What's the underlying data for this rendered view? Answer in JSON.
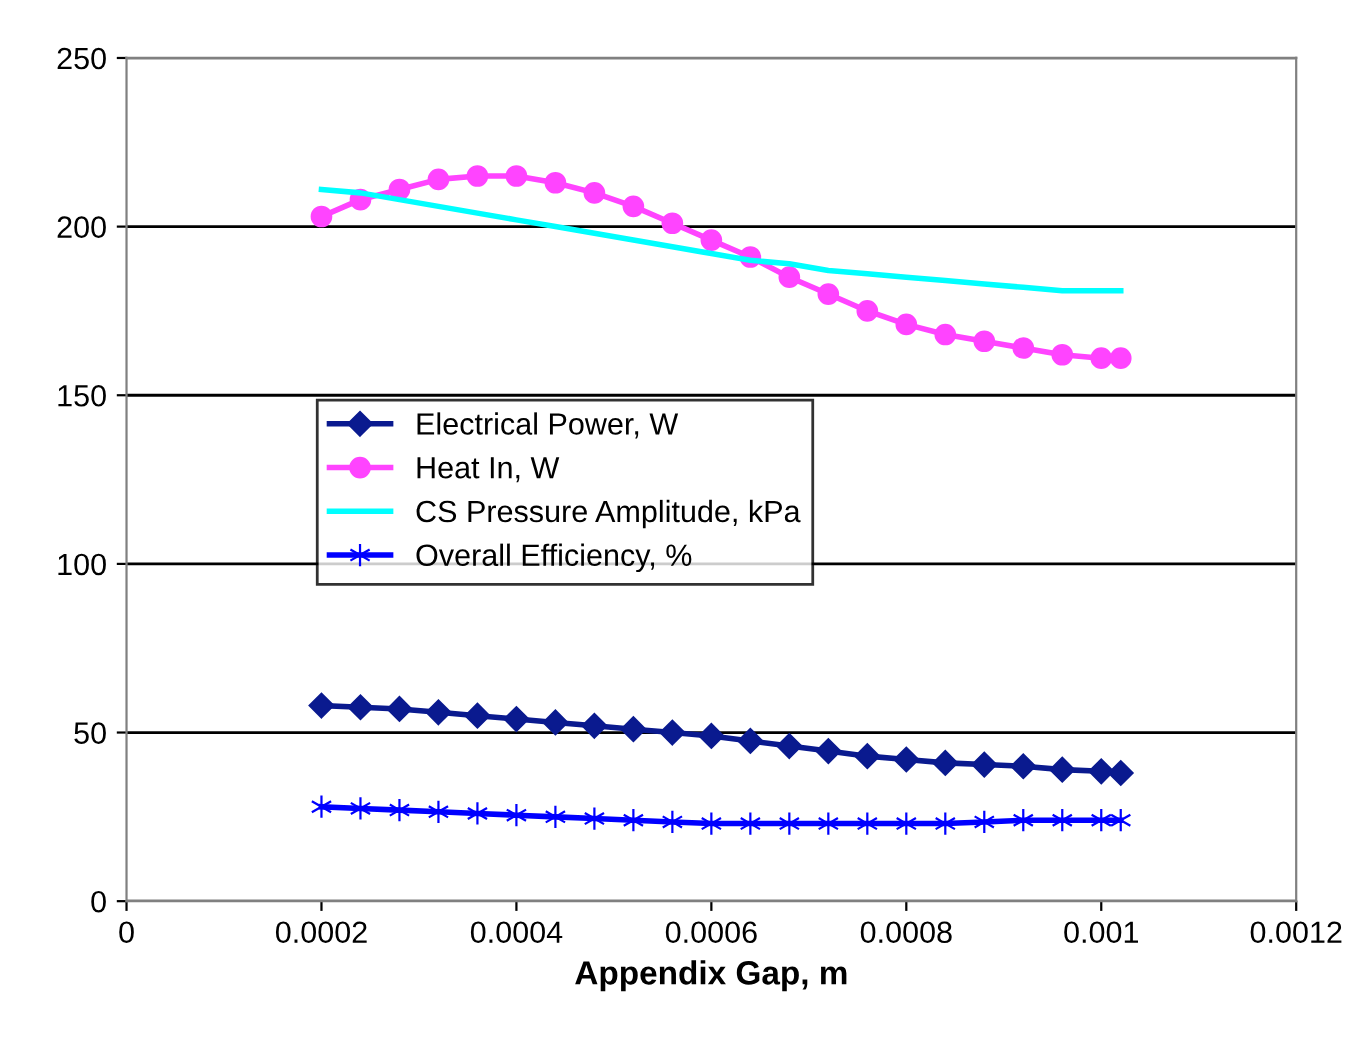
{
  "chart_data": {
    "type": "line",
    "xlabel": "Appendix Gap, m",
    "x": [
      0.0002,
      0.00024,
      0.00028,
      0.00032,
      0.00036,
      0.0004,
      0.00044,
      0.00048,
      0.00052,
      0.00056,
      0.0006,
      0.00064,
      0.00068,
      0.00072,
      0.00076,
      0.0008,
      0.00084,
      0.00088,
      0.00092,
      0.00096,
      0.001,
      0.00102
    ],
    "series": [
      {
        "name": "Electrical Power, W",
        "color": "#0a1a8f",
        "marker": "diamond",
        "values": [
          58,
          57.5,
          57,
          56,
          55,
          54,
          53,
          52,
          51,
          50,
          49,
          47.5,
          46,
          44.5,
          43,
          42,
          41,
          40.5,
          40,
          39,
          38.5,
          38
        ]
      },
      {
        "name": "Heat In, W",
        "color": "#ff44ff",
        "marker": "circle",
        "values": [
          203,
          208,
          211,
          214,
          215,
          215,
          213,
          210,
          206,
          201,
          196,
          191,
          185,
          180,
          175,
          171,
          168,
          166,
          164,
          162,
          161,
          161
        ]
      },
      {
        "name": "CS Pressure Amplitude, kPa",
        "color": "#00ffff",
        "marker": "none",
        "values": [
          211,
          210,
          208,
          206,
          204,
          202,
          200,
          198,
          196,
          194,
          192,
          190,
          189,
          187,
          186,
          185,
          184,
          183,
          182,
          181,
          181,
          181
        ]
      },
      {
        "name": "Overall Efficiency, %",
        "color": "#0000ff",
        "marker": "cross",
        "values": [
          28,
          27.5,
          27,
          26.5,
          26,
          25.5,
          25,
          24.5,
          24,
          23.5,
          23,
          23,
          23,
          23,
          23,
          23,
          23,
          23.5,
          24,
          24,
          24,
          24
        ]
      }
    ],
    "xlim": [
      0,
      0.0012
    ],
    "xticks": [
      0,
      0.0002,
      0.0004,
      0.0006,
      0.0008,
      0.001,
      0.0012
    ],
    "ylim": [
      0,
      250
    ],
    "yticks": [
      0,
      50,
      100,
      150,
      200,
      250
    ],
    "grid": "y",
    "legend": "center left"
  }
}
